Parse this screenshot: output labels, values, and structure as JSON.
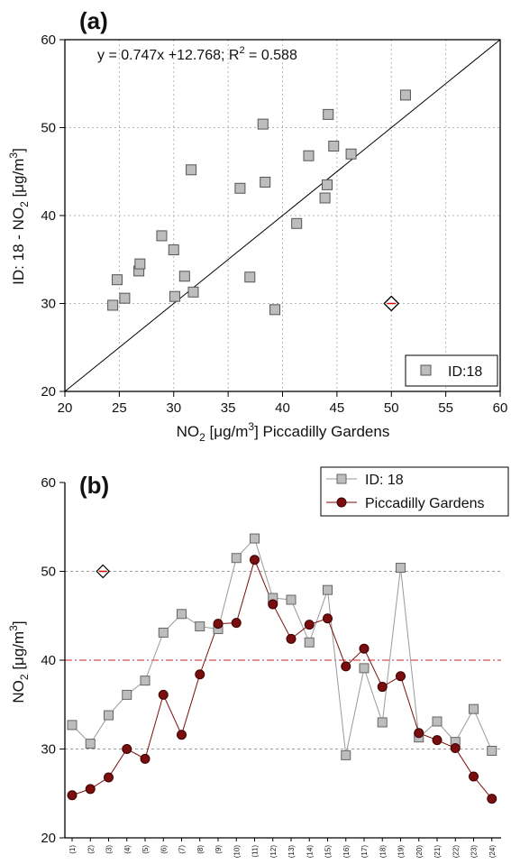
{
  "chart_data": [
    {
      "type": "scatter",
      "panel_label": "(a)",
      "equation": "y = 0.747x +12.768; R² = 0.588",
      "equation_prefix": "y = 0.747x +12.768; R",
      "equation_sup": "2",
      "equation_suffix": " = 0.588",
      "xlabel": "NO₂ [μg/m³] Piccadilly Gardens",
      "xlabel_parts": [
        "NO",
        "2",
        " [μg/m",
        "3",
        "] Piccadilly Gardens"
      ],
      "ylabel": "ID: 18 - NO₂ [μg/m³]",
      "ylabel_parts": [
        "ID: 18 - NO",
        "2",
        " [μg/m",
        "3",
        "]"
      ],
      "xlim": [
        20,
        60
      ],
      "ylim": [
        20,
        60
      ],
      "xticks": [
        "20",
        "25",
        "30",
        "35",
        "40",
        "45",
        "50",
        "55",
        "60"
      ],
      "yticks": [
        "20",
        "30",
        "40",
        "50",
        "60"
      ],
      "grid": true,
      "legend": {
        "position": "bottom-right",
        "entries": [
          "ID:18"
        ]
      },
      "fit_line": {
        "slope": 1,
        "intercept": 0
      },
      "series": [
        {
          "name": "ID:18",
          "points": [
            [
              24.4,
              29.8
            ],
            [
              24.8,
              32.7
            ],
            [
              25.5,
              30.6
            ],
            [
              26.8,
              33.7
            ],
            [
              26.9,
              34.5
            ],
            [
              28.9,
              37.7
            ],
            [
              30.0,
              36.1
            ],
            [
              30.1,
              30.8
            ],
            [
              31.0,
              33.1
            ],
            [
              31.6,
              45.2
            ],
            [
              31.8,
              31.3
            ],
            [
              36.1,
              43.1
            ],
            [
              37.0,
              33.0
            ],
            [
              38.2,
              50.4
            ],
            [
              38.4,
              43.8
            ],
            [
              39.3,
              29.3
            ],
            [
              41.3,
              39.1
            ],
            [
              42.4,
              46.8
            ],
            [
              43.9,
              42.0
            ],
            [
              44.1,
              43.5
            ],
            [
              44.2,
              51.5
            ],
            [
              44.7,
              47.9
            ],
            [
              46.3,
              47.0
            ],
            [
              51.3,
              53.7
            ]
          ]
        }
      ],
      "outlier": [
        50,
        30
      ]
    },
    {
      "type": "line",
      "panel_label": "(b)",
      "ylabel": "NO₂ [μg/m³]",
      "ylabel_parts": [
        "NO",
        "2",
        " [μg/m",
        "3",
        "]"
      ],
      "ylim": [
        20,
        60
      ],
      "yticks": [
        "20",
        "30",
        "40",
        "50",
        "60"
      ],
      "categories": [
        "(1)",
        "(2)",
        "(3)",
        "(4)",
        "(5)",
        "(6)",
        "(7)",
        "(8)",
        "(9)",
        "(10)",
        "(11)",
        "(12)",
        "(13)",
        "(14)",
        "(15)",
        "(16)",
        "(17)",
        "(18)",
        "(19)",
        "(20)",
        "(21)",
        "(22)",
        "(23)",
        "(24)"
      ],
      "reference_lines": [
        {
          "y": 50,
          "style": "gray-dash"
        },
        {
          "y": 40,
          "style": "red-dashdot"
        },
        {
          "y": 30,
          "style": "gray-dash"
        }
      ],
      "outlier": {
        "x": "(2)",
        "y": 50
      },
      "legend": {
        "position": "top-right",
        "entries": [
          "ID: 18",
          "Piccadilly Gardens"
        ]
      },
      "series": [
        {
          "name": "ID: 18",
          "color": "#9a9a9a",
          "values": [
            32.7,
            30.6,
            33.8,
            36.1,
            37.7,
            43.1,
            45.2,
            43.8,
            43.5,
            51.5,
            53.7,
            47.0,
            46.8,
            42.0,
            47.9,
            29.3,
            39.1,
            33.0,
            50.4,
            31.3,
            33.1,
            30.8,
            34.5,
            29.8
          ]
        },
        {
          "name": "Piccadilly Gardens",
          "color": "#7a0d0d",
          "values": [
            24.8,
            25.5,
            26.8,
            30.0,
            28.9,
            36.1,
            31.6,
            38.4,
            44.1,
            44.2,
            51.3,
            46.3,
            42.4,
            44.0,
            44.7,
            39.3,
            41.3,
            37.0,
            38.2,
            31.8,
            31.0,
            30.1,
            26.9,
            24.4
          ]
        }
      ]
    }
  ]
}
